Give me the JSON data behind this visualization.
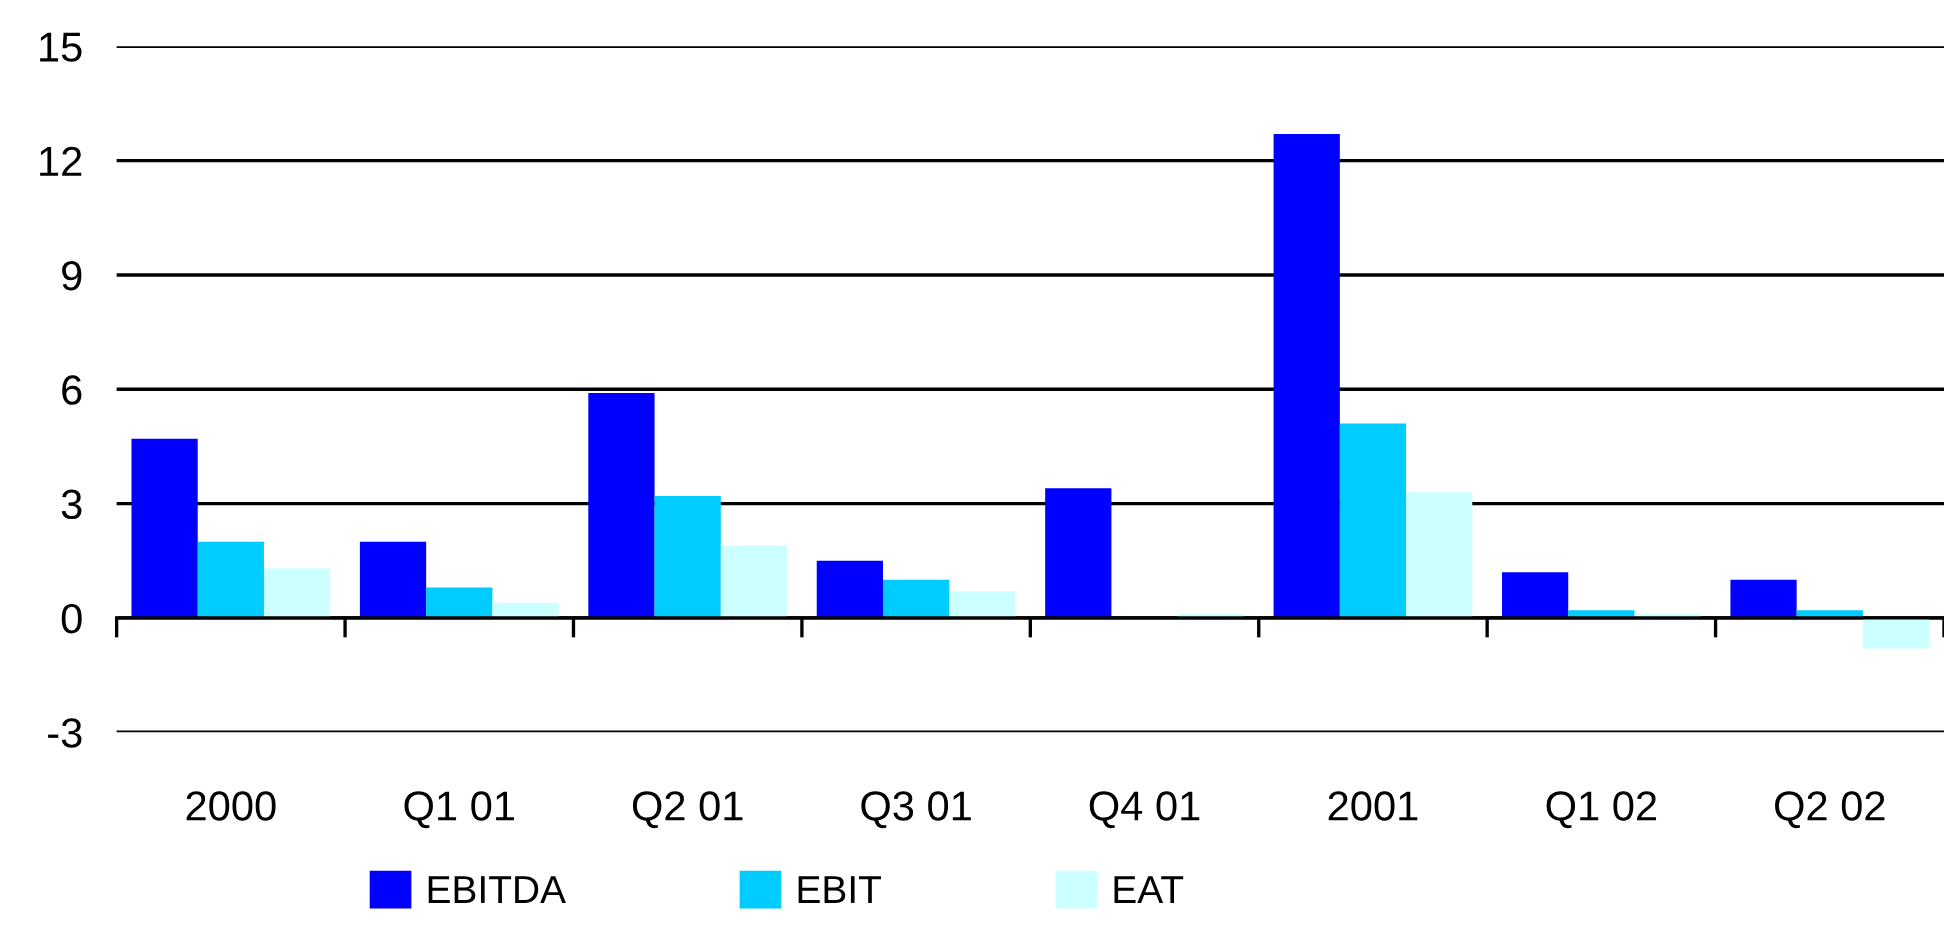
{
  "chart_data": {
    "type": "bar",
    "categories": [
      "2000",
      "Q1 01",
      "Q2 01",
      "Q3 01",
      "Q4 01",
      "2001",
      "Q1 02",
      "Q2 02"
    ],
    "series": [
      {
        "name": "EBITDA",
        "color": "#0000ff",
        "values": [
          4.7,
          2.0,
          5.9,
          1.5,
          3.4,
          12.7,
          1.2,
          1.0
        ]
      },
      {
        "name": "EBIT",
        "color": "#00ccff",
        "values": [
          2.0,
          0.8,
          3.2,
          1.0,
          0,
          5.1,
          0.2,
          0.2
        ]
      },
      {
        "name": "EAT",
        "color": "#ccffff",
        "values": [
          1.3,
          0.4,
          1.9,
          0.7,
          0.1,
          3.3,
          0.1,
          -0.8
        ]
      }
    ],
    "ylim": [
      -3,
      15
    ],
    "yticks": [
      -3,
      0,
      3,
      6,
      9,
      12,
      15
    ],
    "grid": "y",
    "legend": "bottom"
  }
}
